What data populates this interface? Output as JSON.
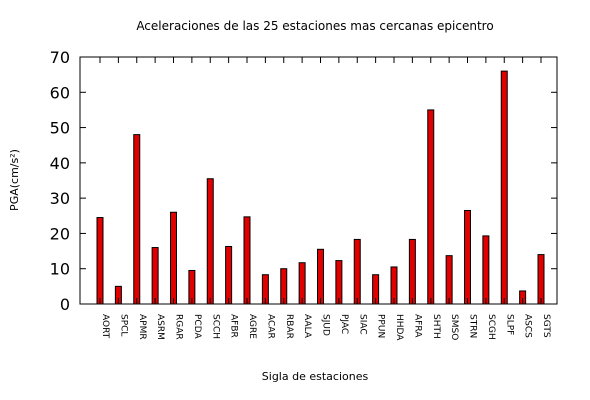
{
  "chart_data": {
    "type": "bar",
    "title": "Aceleraciones de las 25 estaciones mas cercanas epicentro",
    "xlabel": "Sigla de estaciones",
    "ylabel": "PGA(cm/s²)",
    "ylim": [
      0,
      70
    ],
    "yticks": [
      "0",
      "10",
      "20",
      "30",
      "40",
      "50",
      "60",
      "70"
    ],
    "grid": false,
    "bar_color": "#e00000",
    "categories": [
      "AORT",
      "SPCL",
      "APMR",
      "ASRM",
      "RGAR",
      "PCDA",
      "SCCH",
      "AFBR",
      "AGRE",
      "ACAR",
      "RBAR",
      "AALA",
      "SJUD",
      "PJAC",
      "SIAC",
      "PPUN",
      "HHDA",
      "AFRA",
      "SHTH",
      "SMSO",
      "STRN",
      "SCGH",
      "SLPF",
      "ASCS",
      "SGTS"
    ],
    "values": [
      24.5,
      5.0,
      48.0,
      16.0,
      26.0,
      9.5,
      35.5,
      16.3,
      24.7,
      8.3,
      10.0,
      11.7,
      15.5,
      12.3,
      18.3,
      8.3,
      10.5,
      18.3,
      55.0,
      13.7,
      26.5,
      19.3,
      66.0,
      3.7,
      14.0
    ]
  }
}
